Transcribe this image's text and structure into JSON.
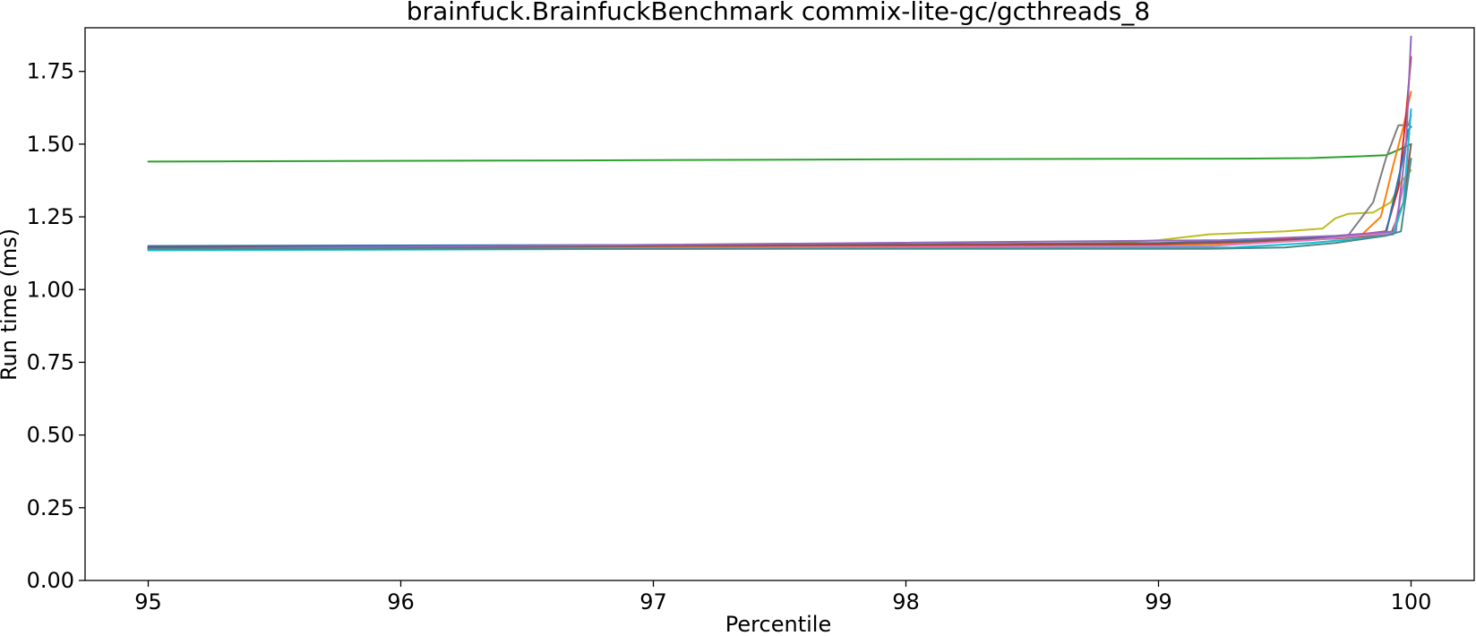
{
  "chart_data": {
    "type": "line",
    "title": "brainfuck.BrainfuckBenchmark commix-lite-gc/gcthreads_8",
    "xlabel": "Percentile",
    "ylabel": "Run time (ms)",
    "xlim": [
      94.75,
      100.25
    ],
    "ylim": [
      0.0,
      1.9
    ],
    "xticks": [
      95,
      96,
      97,
      98,
      99,
      100
    ],
    "yticks": [
      0.0,
      0.25,
      0.5,
      0.75,
      1.0,
      1.25,
      1.5,
      1.75
    ],
    "xtick_labels": [
      "95",
      "96",
      "97",
      "98",
      "99",
      "100"
    ],
    "ytick_labels": [
      "0.00",
      "0.25",
      "0.50",
      "0.75",
      "1.00",
      "1.25",
      "1.50",
      "1.75"
    ],
    "grid": false,
    "legend": "none",
    "series": [
      {
        "color": "#2ca02c",
        "points": [
          [
            95,
            1.44
          ],
          [
            97,
            1.445
          ],
          [
            98,
            1.448
          ],
          [
            99.3,
            1.45
          ],
          [
            99.6,
            1.452
          ],
          [
            99.8,
            1.458
          ],
          [
            99.9,
            1.462
          ],
          [
            99.95,
            1.48
          ],
          [
            100,
            1.5
          ]
        ]
      },
      {
        "color": "#bcbd22",
        "points": [
          [
            95,
            1.14
          ],
          [
            98,
            1.148
          ],
          [
            98.8,
            1.16
          ],
          [
            99.0,
            1.17
          ],
          [
            99.2,
            1.19
          ],
          [
            99.5,
            1.2
          ],
          [
            99.65,
            1.21
          ],
          [
            99.7,
            1.245
          ],
          [
            99.75,
            1.26
          ],
          [
            99.85,
            1.265
          ],
          [
            99.92,
            1.3
          ],
          [
            99.96,
            1.37
          ],
          [
            100,
            1.41
          ]
        ]
      },
      {
        "color": "#7f7f7f",
        "points": [
          [
            95,
            1.145
          ],
          [
            99,
            1.155
          ],
          [
            99.5,
            1.17
          ],
          [
            99.75,
            1.185
          ],
          [
            99.85,
            1.3
          ],
          [
            99.9,
            1.45
          ],
          [
            99.95,
            1.565
          ],
          [
            99.99,
            1.565
          ],
          [
            100,
            1.6
          ]
        ]
      },
      {
        "color": "#ff7f0e",
        "points": [
          [
            95,
            1.14
          ],
          [
            99,
            1.15
          ],
          [
            99.6,
            1.17
          ],
          [
            99.8,
            1.185
          ],
          [
            99.88,
            1.25
          ],
          [
            99.93,
            1.43
          ],
          [
            99.97,
            1.56
          ],
          [
            100,
            1.68
          ]
        ]
      },
      {
        "color": "#d62728",
        "points": [
          [
            95,
            1.145
          ],
          [
            99,
            1.155
          ],
          [
            99.7,
            1.18
          ],
          [
            99.9,
            1.2
          ],
          [
            99.95,
            1.35
          ],
          [
            99.98,
            1.6
          ],
          [
            100,
            1.8
          ]
        ]
      },
      {
        "color": "#1f77b4",
        "points": [
          [
            95,
            1.15
          ],
          [
            98,
            1.155
          ],
          [
            99,
            1.16
          ],
          [
            99.5,
            1.17
          ],
          [
            99.9,
            1.19
          ],
          [
            99.96,
            1.42
          ],
          [
            99.99,
            1.55
          ],
          [
            100,
            1.56
          ]
        ]
      },
      {
        "color": "#8c564b",
        "points": [
          [
            95,
            1.14
          ],
          [
            99.2,
            1.16
          ],
          [
            99.7,
            1.175
          ],
          [
            99.92,
            1.19
          ],
          [
            99.97,
            1.3
          ],
          [
            100,
            1.5
          ]
        ]
      },
      {
        "color": "#e377c2",
        "points": [
          [
            95,
            1.135
          ],
          [
            99.2,
            1.15
          ],
          [
            99.6,
            1.17
          ],
          [
            99.93,
            1.195
          ],
          [
            99.98,
            1.4
          ],
          [
            100,
            1.62
          ]
        ]
      },
      {
        "color": "#9467bd",
        "points": [
          [
            95,
            1.14
          ],
          [
            99.25,
            1.17
          ],
          [
            99.7,
            1.185
          ],
          [
            99.94,
            1.2
          ],
          [
            99.98,
            1.5
          ],
          [
            100,
            1.87
          ]
        ]
      },
      {
        "color": "#17becf",
        "points": [
          [
            95,
            1.135
          ],
          [
            99.3,
            1.145
          ],
          [
            99.6,
            1.16
          ],
          [
            99.8,
            1.175
          ],
          [
            99.93,
            1.19
          ],
          [
            99.97,
            1.3
          ],
          [
            100,
            1.62
          ]
        ]
      },
      {
        "color": "#4a8a8c",
        "points": [
          [
            95,
            1.14
          ],
          [
            99.2,
            1.14
          ],
          [
            99.5,
            1.145
          ],
          [
            99.7,
            1.16
          ],
          [
            99.9,
            1.185
          ],
          [
            99.96,
            1.2
          ],
          [
            100,
            1.45
          ]
        ]
      }
    ]
  }
}
